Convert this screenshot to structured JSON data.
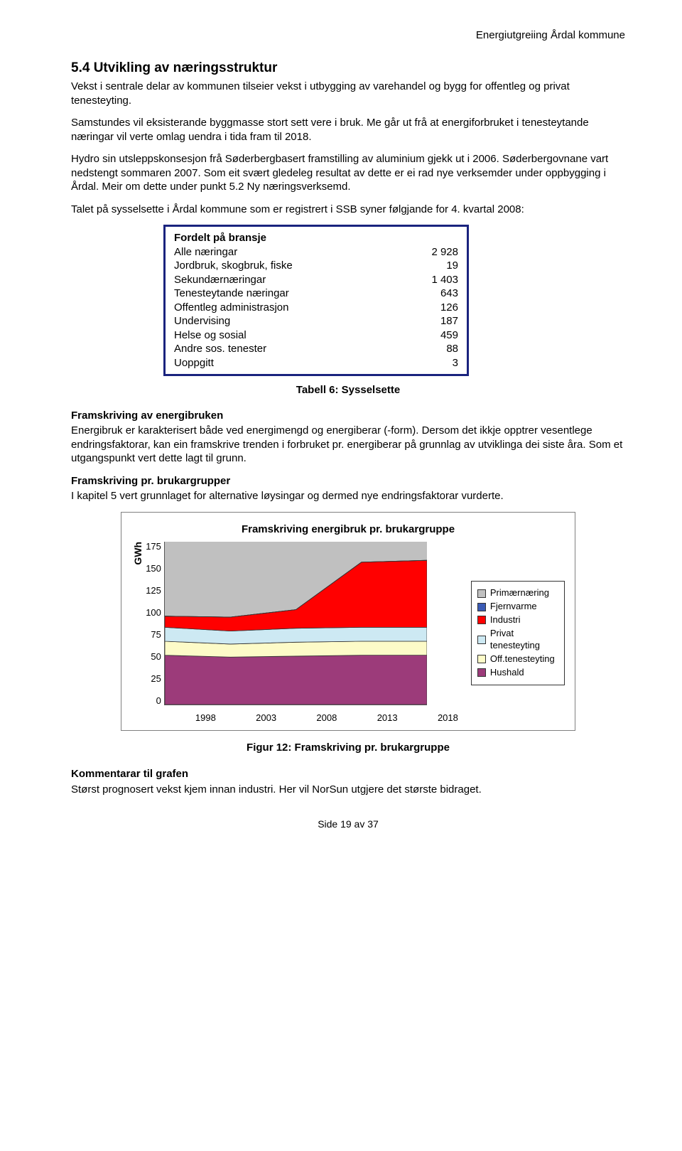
{
  "header": {
    "doc_title": "Energiutgreiing Årdal kommune"
  },
  "section": {
    "number": "5.4",
    "title": "Utvikling av næringsstruktur",
    "p1": "Vekst i sentrale delar av kommunen tilseier vekst i utbygging av varehandel og bygg for offentleg og privat tenesteyting.",
    "p2": "Samstundes vil eksisterande byggmasse stort sett vere i bruk. Me går ut frå at energiforbruket i tenesteytande næringar vil verte omlag uendra i tida fram til 2018.",
    "p3": "Hydro sin utsleppskonsesjon frå Søderbergbasert framstilling av aluminium gjekk ut i 2006. Søderbergovnane vart nedstengt sommaren 2007. Som eit svært gledeleg resultat av dette er ei rad nye verksemder under oppbygging i Årdal. Meir om dette under punkt 5.2 Ny næringsverksemd.",
    "p4": "Talet på sysselsette i Årdal kommune som er registrert i SSB syner følgjande for 4. kvartal 2008:"
  },
  "table": {
    "caption": "Tabell 6: Sysselsette",
    "header": "Fordelt på bransje",
    "rows": [
      {
        "label": "Alle næringar",
        "value": "2 928"
      },
      {
        "label": "Jordbruk, skogbruk, fiske",
        "value": "19"
      },
      {
        "label": "Sekundærnæringar",
        "value": "1 403"
      },
      {
        "label": "Tenesteytande næringar",
        "value": "643"
      },
      {
        "label": "Offentleg administrasjon",
        "value": "126"
      },
      {
        "label": "Undervising",
        "value": "187"
      },
      {
        "label": "Helse og sosial",
        "value": "459"
      },
      {
        "label": "Andre sos. tenester",
        "value": "88"
      },
      {
        "label": "Uoppgitt",
        "value": "3"
      }
    ]
  },
  "framskriving": {
    "h": "Framskriving av energibruken",
    "p": "Energibruk er karakterisert både ved energimengd og energiberar (-form). Dersom det ikkje opptrer vesentlege endringsfaktorar, kan ein framskrive trenden i forbruket pr. energiberar på grunnlag av utviklinga dei siste åra. Som et utgangspunkt vert dette lagt til grunn."
  },
  "brukargrupper": {
    "h": "Framskriving pr. brukargrupper",
    "p": "I kapitel 5 vert grunnlaget for alternative løysingar og dermed nye endringsfaktorar vurderte."
  },
  "chart": {
    "title": "Framskriving energibruk pr. brukargruppe",
    "caption": "Figur 12: Framskriving pr. brukargruppe",
    "ylabel": "GWh",
    "ylim": [
      0,
      175
    ],
    "yticks": [
      "175",
      "150",
      "125",
      "100",
      "75",
      "50",
      "25",
      "0"
    ],
    "xticks": [
      "1998",
      "2003",
      "2008",
      "2013",
      "2018"
    ],
    "background_color": "#c0c0c0",
    "series_order_bottom_to_top": [
      "Hushald",
      "Off.tenesteyting",
      "Privat tenesteyting",
      "Industri",
      "Fjernvarme",
      "Primærnæring"
    ],
    "series": {
      "Hushald": {
        "color": "#9c3b7a",
        "values": [
          53,
          51,
          52,
          53,
          53
        ]
      },
      "Off.tenesteyting": {
        "color": "#fdfbc8",
        "values": [
          15,
          14,
          15,
          15,
          15
        ]
      },
      "Privat tenesteyting": {
        "color": "#cde9f3",
        "values": [
          15,
          14,
          15,
          15,
          15
        ]
      },
      "Industri": {
        "color": "#ff0000",
        "values": [
          12,
          15,
          20,
          70,
          72
        ]
      },
      "Fjernvarme": {
        "color": "#3b5bb5",
        "values": [
          0,
          0,
          0,
          0,
          0
        ]
      },
      "Primærnæring": {
        "color": "#c0c0c0",
        "values": [
          0,
          0,
          0,
          0,
          0
        ]
      }
    },
    "legend": [
      {
        "label": "Primærnæring",
        "color": "#c0c0c0"
      },
      {
        "label": "Fjernvarme",
        "color": "#3b5bb5"
      },
      {
        "label": "Industri",
        "color": "#ff0000"
      },
      {
        "label": "Privat tenesteyting",
        "color": "#cde9f3"
      },
      {
        "label": "Off.tenesteyting",
        "color": "#fdfbc8"
      },
      {
        "label": "Hushald",
        "color": "#9c3b7a"
      }
    ]
  },
  "kommentar": {
    "h": "Kommentarar til grafen",
    "p": "Størst prognosert vekst kjem innan industri. Her vil NorSun utgjere det største bidraget."
  },
  "footer": {
    "page": "Side 19 av 37"
  }
}
